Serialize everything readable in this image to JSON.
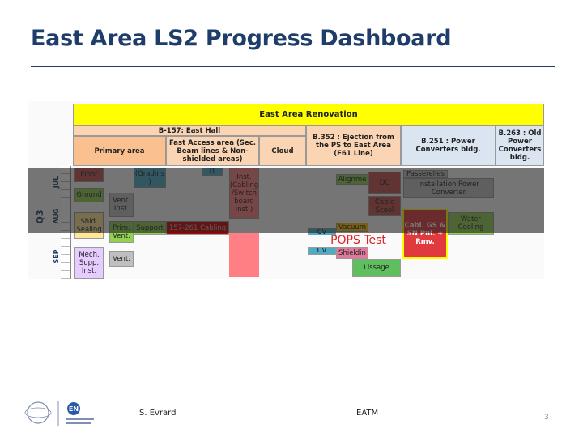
{
  "title": "East Area LS2 Progress Dashboard",
  "dashboard": {
    "header": "East Area Renovation",
    "buildings": [
      "B-157: East Hall",
      "B.352 : Ejection from the PS to East Area (F61 Line)",
      "B.251 : Power Converters bldg.",
      "B.263 : Old Power Converters bldg."
    ],
    "areas": [
      "Primary area",
      "Fast Access area (Sec. Beam lines & Non-shielded areas)",
      "Cloud"
    ],
    "quarter": "Q3",
    "months": [
      "JUL",
      "AUG",
      "SEP"
    ],
    "cells": [
      "Floor",
      "(Gradins )",
      "IT",
      "Inst. (Cabling /Switch board inst.)",
      "Alignme",
      "DC",
      "Passerelles",
      "Installation Power Converter",
      "Ground",
      "Vent. Inst.",
      "Cable Scool",
      "Shld. Sealing",
      "Prim. Vent.",
      "Support",
      "157-261 Cabling",
      "Water Cooling",
      "Vacuum",
      "Cabl. GS & SN Pul. + Rmv.",
      "CV",
      "POPS Test",
      "CV",
      "Shieldin",
      "Mech. Supp. Inst.",
      "Vent.",
      "Lissage"
    ]
  },
  "footer": {
    "logo": "EN",
    "author": "S. Evrard",
    "group": "EATM",
    "page": "3"
  }
}
